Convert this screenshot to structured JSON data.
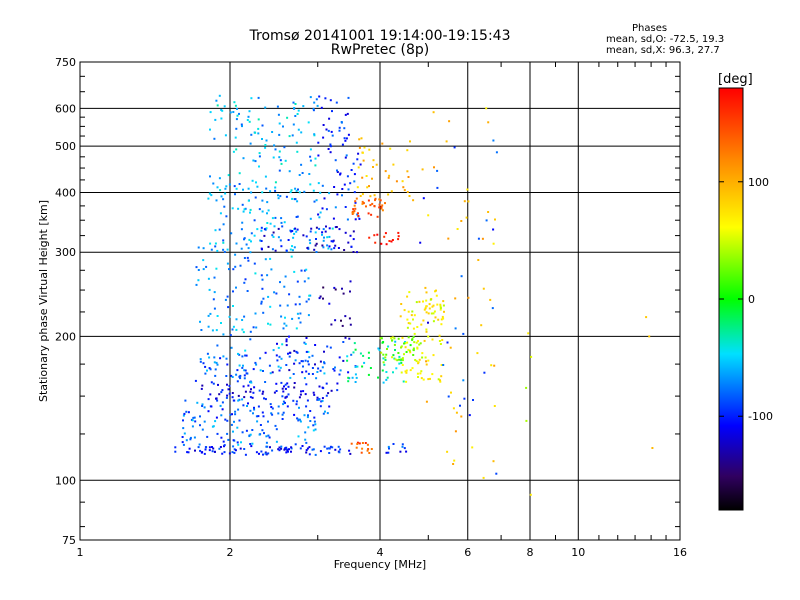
{
  "chart_data": {
    "type": "scatter",
    "title": "Tromsø 20141001 19:14:00-19:15:43",
    "subtitle": "RwPretec (8p)",
    "xlabel": "Frequency [MHz]",
    "ylabel": "Stationary phase Virtual Height [km]",
    "xscale": "log",
    "yscale": "log",
    "xlim": [
      1,
      16
    ],
    "ylim": [
      75,
      750
    ],
    "xticks": [
      1,
      2,
      4,
      6,
      8,
      10,
      16
    ],
    "yticks": [
      75,
      100,
      200,
      300,
      400,
      500,
      600,
      750
    ],
    "grid": true,
    "stats": {
      "heading": "Phases",
      "o_mode": "mean, sd,O: -72.5, 19.3",
      "x_mode": "mean, sd,X:  96.3, 27.7"
    },
    "colorbar": {
      "label": "[deg]",
      "ticks": [
        100,
        0,
        -100
      ],
      "range": [
        -180,
        180
      ],
      "colormap": "rainbow"
    },
    "point_clusters": [
      {
        "x": [
          1.55,
          3.5
        ],
        "y": [
          113,
          118
        ],
        "phase": -95,
        "count": 90
      },
      {
        "x": [
          1.6,
          3.0
        ],
        "y": [
          118,
          135
        ],
        "phase": -70,
        "count": 80
      },
      {
        "x": [
          1.6,
          3.2
        ],
        "y": [
          135,
          148
        ],
        "phase": -80,
        "count": 80
      },
      {
        "x": [
          1.75,
          3.3
        ],
        "y": [
          148,
          160
        ],
        "phase": -105,
        "count": 70
      },
      {
        "x": [
          1.7,
          3.6
        ],
        "y": [
          160,
          185
        ],
        "phase": -75,
        "count": 90
      },
      {
        "x": [
          1.7,
          2.9
        ],
        "y": [
          185,
          310
        ],
        "phase": -65,
        "count": 130
      },
      {
        "x": [
          2.3,
          3.6
        ],
        "y": [
          165,
          200
        ],
        "phase": -100,
        "count": 40
      },
      {
        "x": [
          3.4,
          4.5
        ],
        "y": [
          160,
          195
        ],
        "phase": -30,
        "count": 45
      },
      {
        "x": [
          4.4,
          5.4
        ],
        "y": [
          160,
          250
        ],
        "phase": 65,
        "count": 110
      },
      {
        "x": [
          4.0,
          4.9
        ],
        "y": [
          175,
          200
        ],
        "phase": 30,
        "count": 40
      },
      {
        "x": [
          1.8,
          3.3
        ],
        "y": [
          300,
          420
        ],
        "phase": -60,
        "count": 140
      },
      {
        "x": [
          1.8,
          3.0
        ],
        "y": [
          420,
          640
        ],
        "phase": -55,
        "count": 110
      },
      {
        "x": [
          2.3,
          3.6
        ],
        "y": [
          300,
          340
        ],
        "phase": -110,
        "count": 50
      },
      {
        "x": [
          3.0,
          3.7
        ],
        "y": [
          330,
          640
        ],
        "phase": -90,
        "count": 70
      },
      {
        "x": [
          3.5,
          4.1
        ],
        "y": [
          355,
          390
        ],
        "phase": 140,
        "count": 35
      },
      {
        "x": [
          3.6,
          4.6
        ],
        "y": [
          390,
          520
        ],
        "phase": 95,
        "count": 40
      },
      {
        "x": [
          3.8,
          4.5
        ],
        "y": [
          310,
          330
        ],
        "phase": 175,
        "count": 14
      },
      {
        "x": [
          3.0,
          3.5
        ],
        "y": [
          210,
          270
        ],
        "phase": -130,
        "count": 18
      },
      {
        "x": [
          3.5,
          3.9
        ],
        "y": [
          114,
          120
        ],
        "phase": 145,
        "count": 14
      },
      {
        "x": [
          4.1,
          4.6
        ],
        "y": [
          114,
          120
        ],
        "phase": -90,
        "count": 10
      },
      {
        "x": [
          4.6,
          6.9
        ],
        "y": [
          100,
          620
        ],
        "phase": 90,
        "count": 45
      },
      {
        "x": [
          4.7,
          6.9
        ],
        "y": [
          100,
          600
        ],
        "phase": -90,
        "count": 25
      },
      {
        "x": [
          7.8,
          8.1
        ],
        "y": [
          85,
          250
        ],
        "phase": 60,
        "count": 5
      },
      {
        "x": [
          13.5,
          14.5
        ],
        "y": [
          100,
          550
        ],
        "phase": 110,
        "count": 3
      }
    ]
  }
}
